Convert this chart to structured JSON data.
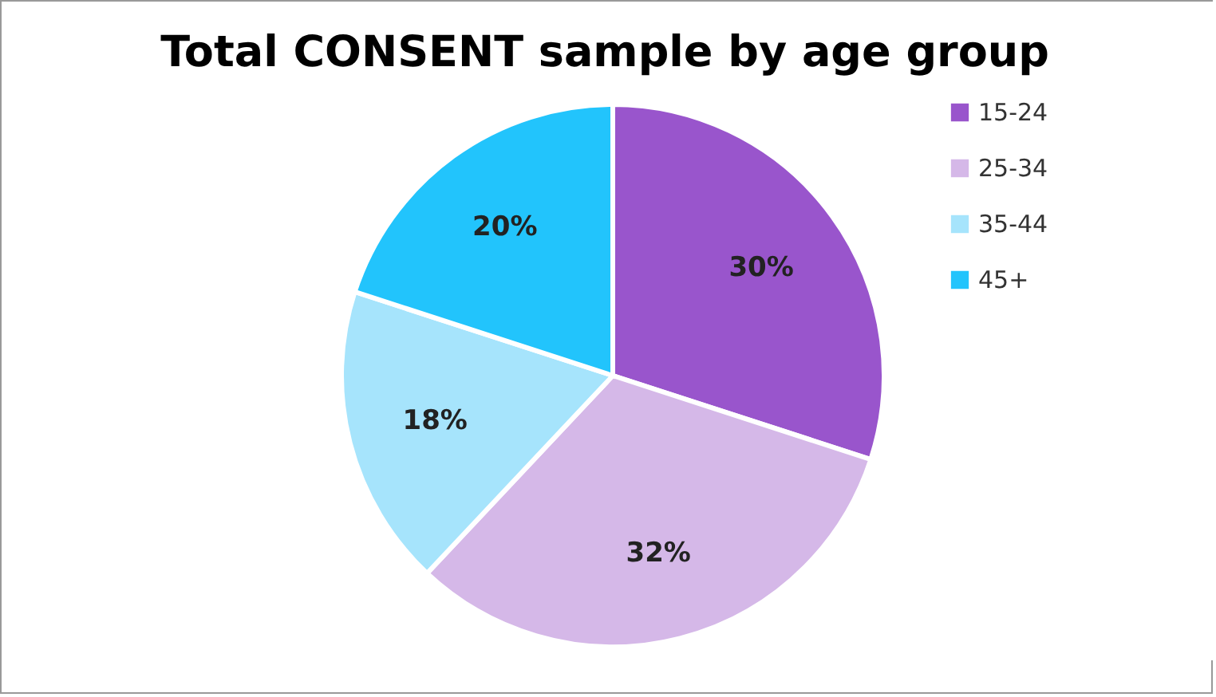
{
  "chart_data": {
    "type": "pie",
    "title": "Total CONSENT sample by age group",
    "categories": [
      "15-24",
      "25-34",
      "35-44",
      "45+"
    ],
    "values": [
      30,
      32,
      18,
      20
    ],
    "colors": [
      "#9955cc",
      "#d5b8e8",
      "#a6e4fc",
      "#22c4fc"
    ],
    "value_labels": [
      "30%",
      "32%",
      "18%",
      "20%"
    ],
    "legend": "right"
  }
}
